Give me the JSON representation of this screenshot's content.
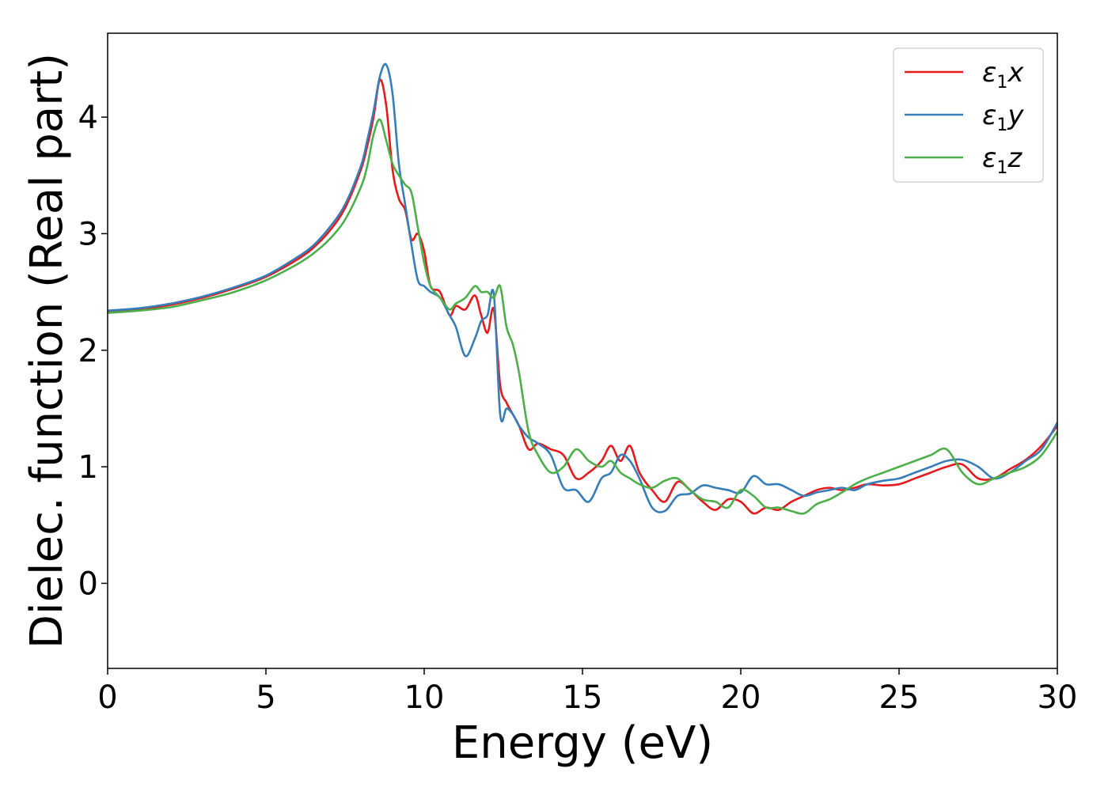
{
  "chart_data": {
    "type": "line",
    "xlabel": "Energy (eV)",
    "ylabel": "Dielec. function (Real part)",
    "xlim": [
      0,
      30
    ],
    "ylim": [
      -0.73,
      4.72
    ],
    "xticks": [
      0,
      5,
      10,
      15,
      20,
      25,
      30
    ],
    "yticks": [
      0,
      1,
      2,
      3,
      4
    ],
    "grid": false,
    "legend_position": "top-right",
    "series": [
      {
        "name": "ε1x",
        "label_main": "ε",
        "label_sub": "1",
        "label_tail": "x",
        "color": "#e41a1c",
        "x": [
          0,
          1,
          2,
          3,
          4,
          5,
          6,
          6.5,
          7,
          7.5,
          8,
          8.2,
          8.4,
          8.6,
          8.8,
          9.0,
          9.2,
          9.4,
          9.6,
          9.8,
          10.0,
          10.2,
          10.5,
          10.8,
          11.0,
          11.3,
          11.6,
          11.8,
          12.0,
          12.2,
          12.4,
          12.6,
          12.8,
          13.0,
          13.3,
          13.6,
          14.0,
          14.4,
          14.8,
          15.2,
          15.6,
          15.9,
          16.2,
          16.5,
          16.8,
          17.2,
          17.6,
          18.0,
          18.4,
          18.8,
          19.2,
          19.6,
          20.0,
          20.4,
          20.8,
          21.2,
          21.6,
          22.0,
          22.4,
          22.8,
          23.2,
          23.6,
          24.0,
          24.5,
          25.0,
          25.5,
          26.0,
          26.5,
          27.0,
          27.5,
          28.0,
          28.5,
          29.0,
          29.5,
          30.0
        ],
        "values": [
          2.33,
          2.35,
          2.39,
          2.45,
          2.53,
          2.63,
          2.78,
          2.88,
          3.02,
          3.22,
          3.55,
          3.75,
          4.0,
          4.32,
          4.1,
          3.55,
          3.3,
          3.2,
          2.95,
          3.0,
          2.85,
          2.55,
          2.5,
          2.3,
          2.38,
          2.35,
          2.47,
          2.3,
          2.15,
          2.35,
          1.7,
          1.55,
          1.45,
          1.35,
          1.15,
          1.2,
          1.15,
          1.1,
          0.9,
          0.95,
          1.05,
          1.18,
          1.05,
          1.18,
          0.95,
          0.8,
          0.7,
          0.87,
          0.8,
          0.7,
          0.63,
          0.72,
          0.7,
          0.6,
          0.65,
          0.63,
          0.7,
          0.75,
          0.8,
          0.82,
          0.8,
          0.82,
          0.85,
          0.84,
          0.85,
          0.9,
          0.95,
          1.0,
          1.02,
          0.9,
          0.9,
          0.98,
          1.06,
          1.18,
          1.35
        ]
      },
      {
        "name": "ε1y",
        "label_main": "ε",
        "label_sub": "1",
        "label_tail": "y",
        "color": "#377eb8",
        "x": [
          0,
          1,
          2,
          3,
          4,
          5,
          6,
          6.5,
          7,
          7.5,
          8,
          8.2,
          8.4,
          8.6,
          8.8,
          9.0,
          9.2,
          9.4,
          9.6,
          9.8,
          10.0,
          10.2,
          10.5,
          10.8,
          11.0,
          11.3,
          11.6,
          11.8,
          12.0,
          12.2,
          12.4,
          12.6,
          12.8,
          13.0,
          13.3,
          13.6,
          14.0,
          14.4,
          14.8,
          15.2,
          15.6,
          15.9,
          16.2,
          16.5,
          16.8,
          17.2,
          17.6,
          18.0,
          18.4,
          18.8,
          19.2,
          19.6,
          20.0,
          20.4,
          20.8,
          21.2,
          21.6,
          22.0,
          22.4,
          22.8,
          23.2,
          23.6,
          24.0,
          24.5,
          25.0,
          25.5,
          26.0,
          26.5,
          27.0,
          27.5,
          28.0,
          28.5,
          29.0,
          29.5,
          30.0
        ],
        "values": [
          2.34,
          2.36,
          2.4,
          2.46,
          2.54,
          2.64,
          2.8,
          2.9,
          3.05,
          3.25,
          3.58,
          3.8,
          4.05,
          4.35,
          4.45,
          4.2,
          3.6,
          3.25,
          2.9,
          2.6,
          2.55,
          2.5,
          2.45,
          2.3,
          2.2,
          1.95,
          2.1,
          2.25,
          2.3,
          2.48,
          1.45,
          1.5,
          1.45,
          1.35,
          1.25,
          1.2,
          1.1,
          0.82,
          0.8,
          0.7,
          0.9,
          0.95,
          1.1,
          1.05,
          0.9,
          0.65,
          0.62,
          0.75,
          0.77,
          0.84,
          0.82,
          0.8,
          0.78,
          0.92,
          0.85,
          0.85,
          0.8,
          0.75,
          0.78,
          0.8,
          0.82,
          0.8,
          0.85,
          0.88,
          0.9,
          0.95,
          1.0,
          1.05,
          1.06,
          1.0,
          0.9,
          0.95,
          1.05,
          1.15,
          1.38
        ]
      },
      {
        "name": "ε1z",
        "label_main": "ε",
        "label_sub": "1",
        "label_tail": "z",
        "color": "#4daf4a",
        "x": [
          0,
          1,
          2,
          3,
          4,
          5,
          6,
          6.5,
          7,
          7.5,
          8,
          8.2,
          8.4,
          8.6,
          8.8,
          9.0,
          9.2,
          9.4,
          9.6,
          9.8,
          10.0,
          10.2,
          10.5,
          10.8,
          11.0,
          11.3,
          11.6,
          11.8,
          12.0,
          12.2,
          12.4,
          12.6,
          12.8,
          13.0,
          13.3,
          13.6,
          14.0,
          14.4,
          14.8,
          15.2,
          15.6,
          15.9,
          16.2,
          16.5,
          16.8,
          17.2,
          17.6,
          18.0,
          18.4,
          18.8,
          19.2,
          19.6,
          20.0,
          20.4,
          20.8,
          21.2,
          21.6,
          22.0,
          22.4,
          22.8,
          23.2,
          23.6,
          24.0,
          24.5,
          25.0,
          25.5,
          26.0,
          26.5,
          27.0,
          27.5,
          28.0,
          28.5,
          29.0,
          29.5,
          30.0
        ],
        "values": [
          2.32,
          2.34,
          2.37,
          2.43,
          2.5,
          2.6,
          2.74,
          2.83,
          2.95,
          3.12,
          3.4,
          3.58,
          3.85,
          3.98,
          3.8,
          3.6,
          3.5,
          3.42,
          3.35,
          3.05,
          2.75,
          2.55,
          2.45,
          2.35,
          2.4,
          2.45,
          2.55,
          2.5,
          2.5,
          2.45,
          2.55,
          2.2,
          2.05,
          1.8,
          1.3,
          1.1,
          0.95,
          1.0,
          1.15,
          1.05,
          1.0,
          1.05,
          0.95,
          0.9,
          0.85,
          0.82,
          0.88,
          0.9,
          0.8,
          0.72,
          0.7,
          0.65,
          0.8,
          0.75,
          0.65,
          0.65,
          0.62,
          0.6,
          0.68,
          0.72,
          0.78,
          0.85,
          0.9,
          0.95,
          1.0,
          1.05,
          1.1,
          1.15,
          0.95,
          0.85,
          0.9,
          0.95,
          1.0,
          1.1,
          1.3
        ]
      }
    ]
  }
}
